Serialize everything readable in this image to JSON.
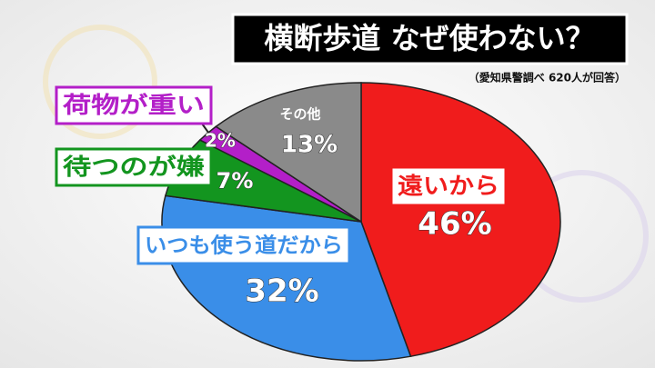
{
  "chart_data": {
    "type": "pie",
    "title": "横断歩道 なぜ使わない？",
    "subtitle": "（愛知県警調べ 620人が回答）",
    "categories": [
      "遠いから",
      "いつも使う道だから",
      "待つのが嫌",
      "荷物が重い",
      "その他"
    ],
    "values": [
      46,
      32,
      7,
      2,
      13
    ],
    "value_labels": [
      "46%",
      "32%",
      "7%",
      "2%",
      "13%"
    ],
    "colors": [
      "#f01c1c",
      "#3a8ee8",
      "#13951f",
      "#b31fc8",
      "#8a8a8a"
    ]
  }
}
